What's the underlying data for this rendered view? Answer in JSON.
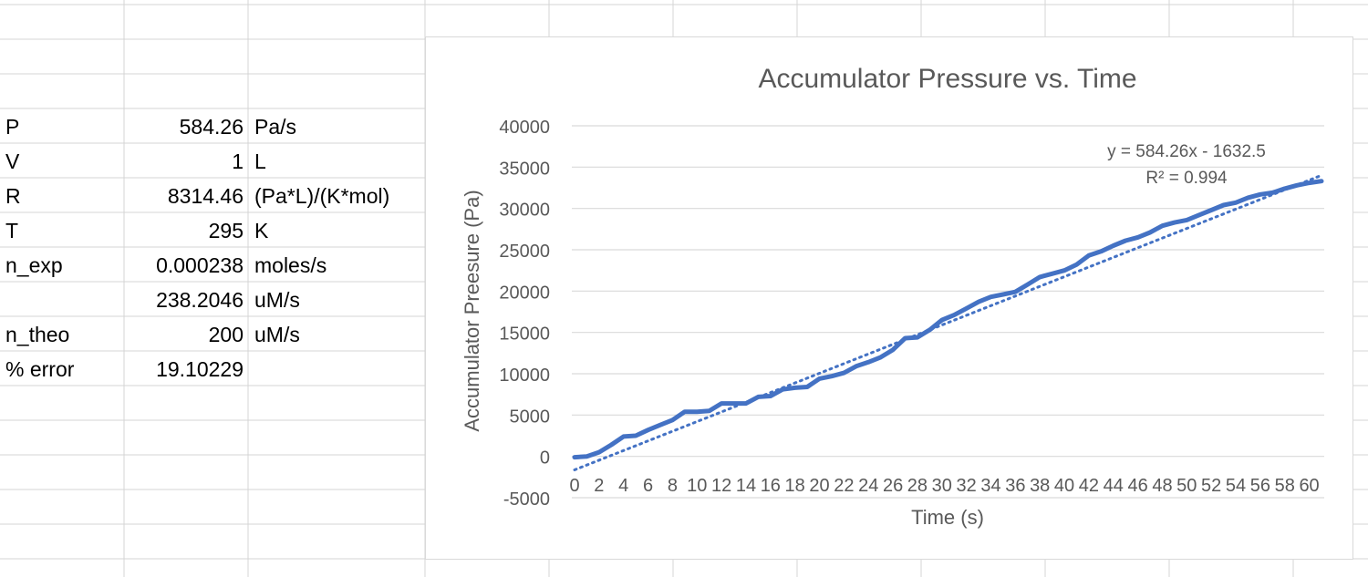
{
  "sheet": {
    "rows": [
      {
        "label": "P",
        "value": "584.26",
        "unit": "Pa/s"
      },
      {
        "label": "V",
        "value": "1",
        "unit": "L"
      },
      {
        "label": "R",
        "value": "8314.46",
        "unit": "(Pa*L)/(K*mol)"
      },
      {
        "label": "T",
        "value": "295",
        "unit": "K"
      },
      {
        "label": "n_exp",
        "value": "0.000238",
        "unit": "moles/s"
      },
      {
        "label": "",
        "value": "238.2046",
        "unit": "uM/s"
      },
      {
        "label": "n_theo",
        "value": "200",
        "unit": "uM/s"
      },
      {
        "label": "% error",
        "value": "19.10229",
        "unit": ""
      }
    ]
  },
  "chart_data": {
    "type": "line",
    "title": "Accumulator Pressure vs. Time",
    "xlabel": "Time (s)",
    "ylabel": "Accumulator Preesure (Pa)",
    "xlim": [
      0,
      61
    ],
    "ylim": [
      -5000,
      40000
    ],
    "y_ticks": [
      -5000,
      0,
      5000,
      10000,
      15000,
      20000,
      25000,
      30000,
      35000,
      40000
    ],
    "x_ticks": [
      0,
      2,
      4,
      6,
      8,
      10,
      12,
      14,
      16,
      18,
      20,
      22,
      24,
      26,
      28,
      30,
      32,
      34,
      36,
      38,
      40,
      42,
      44,
      46,
      48,
      50,
      52,
      54,
      56,
      58,
      60
    ],
    "grid": true,
    "series_color": "#4472c4",
    "series": [
      {
        "x": [
          0,
          1,
          2,
          3,
          4,
          5,
          6,
          7,
          8,
          9,
          10,
          11,
          12,
          13,
          14,
          15,
          16,
          17,
          18,
          19,
          20,
          21,
          22,
          23,
          24,
          25,
          26,
          27,
          28,
          29,
          30,
          31,
          32,
          33,
          34,
          35,
          36,
          37,
          38,
          39,
          40,
          41,
          42,
          43,
          44,
          45,
          46,
          47,
          48,
          49,
          50,
          51,
          52,
          53,
          54,
          55,
          56,
          57,
          58,
          59,
          60,
          61
        ],
        "values": [
          -100,
          0,
          500,
          1400,
          2400,
          2500,
          3200,
          3800,
          4400,
          5400,
          5400,
          5500,
          6400,
          6400,
          6400,
          7200,
          7300,
          8100,
          8300,
          8400,
          9400,
          9700,
          10100,
          10900,
          11400,
          12000,
          12900,
          14300,
          14400,
          15300,
          16500,
          17100,
          17900,
          18700,
          19300,
          19600,
          19900,
          20800,
          21700,
          22100,
          22500,
          23200,
          24300,
          24800,
          25500,
          26100,
          26500,
          27100,
          27900,
          28300,
          28600,
          29200,
          29800,
          30400,
          30700,
          31300,
          31700,
          31900,
          32400,
          32800,
          33100,
          33300
        ]
      }
    ],
    "trendline": {
      "slope": 584.26,
      "intercept": -1632.5,
      "equation": "y = 584.26x - 1632.5",
      "r2": "R² = 0.994"
    }
  }
}
